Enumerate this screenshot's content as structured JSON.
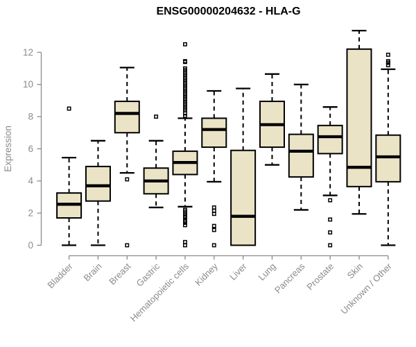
{
  "chart_data": {
    "type": "boxplot",
    "title": "ENSG00000204632 - HLA-G",
    "ylabel": "Expression",
    "xlabel": "",
    "ylim": [
      0,
      12
    ],
    "yticks": [
      0,
      2,
      4,
      6,
      8,
      10,
      12
    ],
    "grid": false,
    "legend": "none",
    "axis_color": "#8a8a8a",
    "box_fill": "#eae3c6",
    "box_border": "#000000",
    "categories": [
      "Bladder",
      "Brain",
      "Breast",
      "Gastric",
      "Hematopoietic cells",
      "Kidney",
      "Liver",
      "Lung",
      "Pancreas",
      "Prostate",
      "Skin",
      "Unknown / Other"
    ],
    "series": [
      {
        "name": "Bladder",
        "whisker_low": 0.0,
        "q1": 1.7,
        "median": 2.55,
        "q3": 3.25,
        "whisker_high": 5.45,
        "outliers": [
          8.5
        ]
      },
      {
        "name": "Brain",
        "whisker_low": 0.0,
        "q1": 2.75,
        "median": 3.7,
        "q3": 4.9,
        "whisker_high": 6.5,
        "outliers": []
      },
      {
        "name": "Breast",
        "whisker_low": 4.5,
        "q1": 7.0,
        "median": 8.2,
        "q3": 8.95,
        "whisker_high": 11.05,
        "outliers": [
          4.1,
          0.0
        ]
      },
      {
        "name": "Gastric",
        "whisker_low": 2.35,
        "q1": 3.2,
        "median": 4.0,
        "q3": 4.8,
        "whisker_high": 6.5,
        "outliers": [
          8.0
        ]
      },
      {
        "name": "Hematopoietic cells",
        "whisker_low": 2.4,
        "q1": 4.4,
        "median": 5.15,
        "q3": 5.85,
        "whisker_high": 7.9,
        "outliers": [
          12.5,
          11.45,
          11.4,
          11.0,
          10.9,
          10.8,
          10.7,
          10.6,
          10.5,
          10.4,
          10.3,
          10.2,
          10.1,
          10.0,
          9.9,
          9.8,
          9.7,
          9.6,
          9.5,
          9.4,
          9.3,
          9.2,
          9.1,
          9.0,
          8.9,
          8.8,
          8.7,
          8.6,
          8.5,
          8.4,
          8.2,
          8.05,
          2.2,
          2.1,
          2.0,
          1.9,
          1.8,
          1.75,
          1.6,
          1.5,
          1.4,
          1.25,
          0.2,
          0.0
        ]
      },
      {
        "name": "Kidney",
        "whisker_low": 3.95,
        "q1": 6.1,
        "median": 7.2,
        "q3": 7.9,
        "whisker_high": 9.6,
        "outliers": [
          2.35,
          2.15,
          1.95,
          1.2,
          0.95,
          0.0
        ]
      },
      {
        "name": "Liver",
        "whisker_low": 0.0,
        "q1": 0.0,
        "median": 1.8,
        "q3": 5.9,
        "whisker_high": 9.75,
        "outliers": []
      },
      {
        "name": "Lung",
        "whisker_low": 5.0,
        "q1": 6.1,
        "median": 7.5,
        "q3": 8.95,
        "whisker_high": 10.65,
        "outliers": []
      },
      {
        "name": "Pancreas",
        "whisker_low": 2.2,
        "q1": 4.25,
        "median": 5.85,
        "q3": 6.9,
        "whisker_high": 10.0,
        "outliers": []
      },
      {
        "name": "Prostate",
        "whisker_low": 3.1,
        "q1": 5.7,
        "median": 6.75,
        "q3": 7.45,
        "whisker_high": 8.6,
        "outliers": [
          2.8,
          1.6,
          0.8,
          0.0
        ]
      },
      {
        "name": "Skin",
        "whisker_low": 1.95,
        "q1": 3.65,
        "median": 4.85,
        "q3": 12.2,
        "whisker_high": 13.35,
        "outliers": []
      },
      {
        "name": "Unknown / Other",
        "whisker_low": 0.0,
        "q1": 3.95,
        "median": 5.5,
        "q3": 6.85,
        "whisker_high": 10.95,
        "outliers": [
          11.85,
          11.45,
          11.35,
          11.2
        ]
      }
    ]
  }
}
